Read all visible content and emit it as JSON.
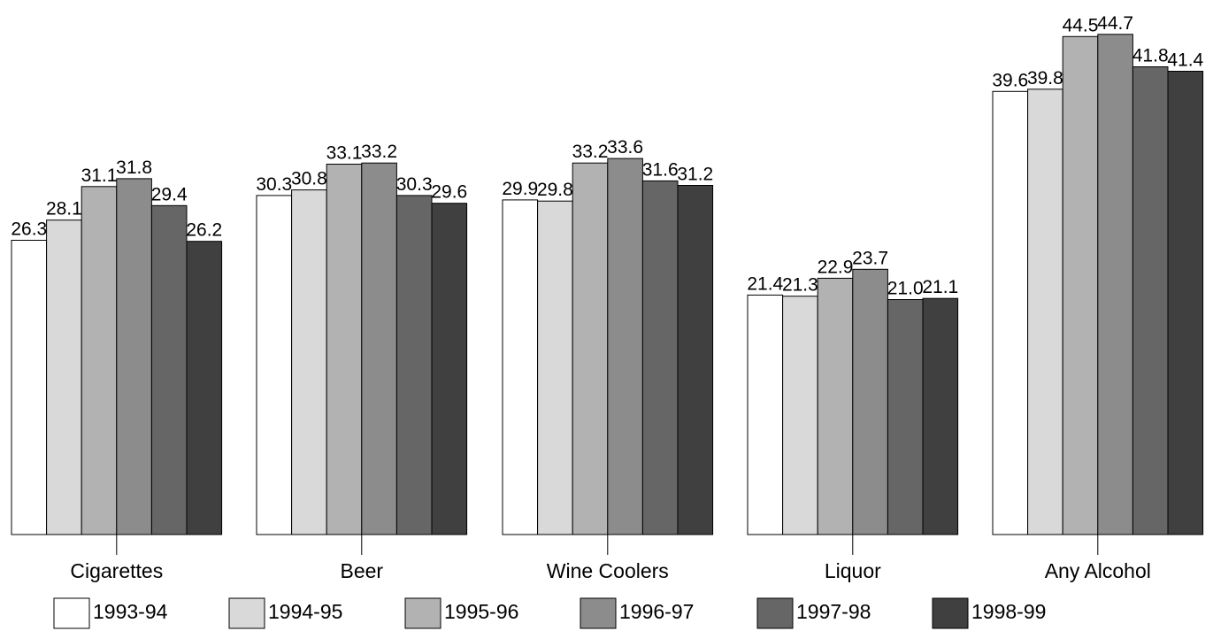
{
  "chart_data": {
    "type": "bar",
    "title": "",
    "xlabel": "",
    "ylabel": "",
    "ylim": [
      0,
      45
    ],
    "grid": false,
    "legend_position": "bottom",
    "categories": [
      "Cigarettes",
      "Beer",
      "Wine Coolers",
      "Liquor",
      "Any Alcohol"
    ],
    "series": [
      {
        "name": "1993-94",
        "color": "#ffffff",
        "values": [
          26.3,
          30.3,
          29.9,
          21.4,
          39.6
        ],
        "labels": [
          "26.3",
          "30.3",
          "29.9",
          "21.4",
          "39.6"
        ]
      },
      {
        "name": "1994-95",
        "color": "#d9d9d9",
        "values": [
          28.1,
          30.8,
          29.8,
          21.3,
          39.8
        ],
        "labels": [
          "28.1",
          "30.8",
          "29.8",
          "21.3",
          "39.8"
        ]
      },
      {
        "name": "1995-96",
        "color": "#b2b2b2",
        "values": [
          31.1,
          33.1,
          33.2,
          22.9,
          44.5
        ],
        "labels": [
          "31.1",
          "33.1",
          "33.2",
          "22.9",
          "44.5"
        ]
      },
      {
        "name": "1996-97",
        "color": "#8c8c8c",
        "values": [
          31.8,
          33.2,
          33.6,
          23.7,
          44.7
        ],
        "labels": [
          "31.8",
          "33.2",
          "33.6",
          "23.7",
          "44.7"
        ]
      },
      {
        "name": "1997-98",
        "color": "#666666",
        "values": [
          29.4,
          30.3,
          31.6,
          21.0,
          41.8
        ],
        "labels": [
          "29.4",
          "30.3",
          "31.6",
          "21.0",
          "41.8"
        ]
      },
      {
        "name": "1998-99",
        "color": "#404040",
        "values": [
          26.2,
          29.6,
          31.2,
          21.1,
          41.4
        ],
        "labels": [
          "26.2",
          "29.6",
          "31.2",
          "21.1",
          "41.4"
        ]
      }
    ]
  }
}
